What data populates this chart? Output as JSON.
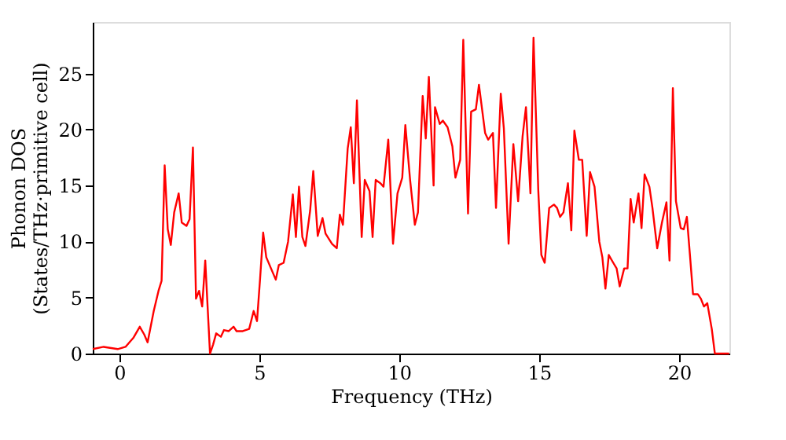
{
  "chart_data": {
    "type": "line",
    "xlabel": "Frequency (THz)",
    "ylabel": "Phonon DOS\n(States/THz·primitive cell)",
    "x": [
      -0.95,
      -0.56,
      -0.06,
      0.22,
      0.5,
      0.73,
      0.89,
      1.01,
      1.23,
      1.4,
      1.51,
      1.62,
      1.73,
      1.84,
      1.96,
      2.12,
      2.23,
      2.4,
      2.51,
      2.63,
      2.74,
      2.85,
      2.96,
      3.07,
      3.24,
      3.35,
      3.46,
      3.63,
      3.74,
      3.91,
      4.08,
      4.19,
      4.41,
      4.64,
      4.8,
      4.92,
      5.03,
      5.14,
      5.25,
      5.42,
      5.59,
      5.7,
      5.87,
      6.03,
      6.2,
      6.31,
      6.42,
      6.54,
      6.65,
      6.82,
      6.93,
      7.09,
      7.26,
      7.37,
      7.6,
      7.77,
      7.88,
      7.99,
      8.16,
      8.27,
      8.38,
      8.49,
      8.66,
      8.77,
      8.94,
      9.05,
      9.16,
      9.33,
      9.44,
      9.61,
      9.78,
      9.94,
      10.11,
      10.22,
      10.39,
      10.56,
      10.67,
      10.84,
      10.95,
      11.06,
      11.23,
      11.28,
      11.45,
      11.56,
      11.73,
      11.9,
      12.01,
      12.18,
      12.29,
      12.46,
      12.57,
      12.74,
      12.85,
      13.07,
      13.18,
      13.35,
      13.46,
      13.63,
      13.74,
      13.91,
      14.08,
      14.25,
      14.41,
      14.53,
      14.69,
      14.8,
      14.97,
      15.08,
      15.2,
      15.36,
      15.53,
      15.64,
      15.75,
      15.87,
      16.03,
      16.15,
      16.26,
      16.42,
      16.54,
      16.7,
      16.82,
      16.98,
      17.15,
      17.26,
      17.37,
      17.49,
      17.65,
      17.77,
      17.88,
      18.04,
      18.16,
      18.27,
      18.38,
      18.55,
      18.66,
      18.77,
      18.94,
      19.05,
      19.22,
      19.39,
      19.55,
      19.66,
      19.78,
      19.89,
      20.06,
      20.17,
      20.28,
      20.39,
      20.5,
      20.67,
      20.78,
      20.89,
      21.01,
      21.17,
      21.28,
      21.79
    ],
    "series": [
      {
        "color": "#ff0000",
        "values": [
          0.4,
          0.6,
          0.4,
          0.6,
          1.4,
          2.4,
          1.7,
          1.0,
          3.8,
          5.6,
          6.5,
          16.8,
          11.1,
          9.7,
          12.6,
          14.3,
          11.7,
          11.4,
          12.0,
          18.4,
          4.9,
          5.6,
          4.2,
          8.3,
          0.0,
          0.8,
          1.8,
          1.5,
          2.1,
          2.0,
          2.4,
          2.0,
          2.0,
          2.2,
          3.8,
          2.9,
          6.7,
          10.8,
          8.6,
          7.6,
          6.6,
          7.9,
          8.1,
          10.0,
          14.2,
          10.4,
          14.9,
          10.4,
          9.6,
          12.8,
          16.3,
          10.5,
          12.1,
          10.7,
          9.8,
          9.4,
          12.4,
          11.5,
          18.3,
          20.2,
          15.2,
          22.6,
          10.4,
          15.5,
          14.5,
          10.4,
          15.5,
          15.2,
          14.9,
          19.1,
          9.8,
          14.3,
          15.7,
          20.4,
          15.5,
          11.5,
          12.6,
          23.0,
          19.2,
          24.7,
          15.0,
          22.0,
          20.5,
          20.8,
          20.2,
          18.5,
          15.7,
          17.3,
          28.0,
          12.5,
          21.6,
          21.8,
          24.0,
          19.7,
          19.1,
          19.7,
          13.0,
          23.2,
          20.1,
          9.8,
          18.7,
          13.6,
          19.4,
          22.0,
          14.3,
          28.2,
          14.6,
          8.8,
          8.1,
          13.0,
          13.3,
          13.0,
          12.2,
          12.6,
          15.2,
          11.0,
          19.9,
          17.3,
          17.3,
          10.5,
          16.2,
          14.9,
          10.0,
          8.6,
          5.8,
          8.8,
          8.1,
          7.6,
          6.0,
          7.6,
          7.6,
          13.8,
          11.7,
          14.3,
          11.2,
          16.0,
          14.9,
          13.0,
          9.4,
          11.7,
          13.5,
          8.3,
          23.7,
          13.6,
          11.2,
          11.1,
          12.2,
          8.8,
          5.3,
          5.3,
          4.9,
          4.2,
          4.5,
          2.2,
          0.0,
          0.0
        ]
      }
    ],
    "xlim": [
      -0.95,
      21.8
    ],
    "ylim": [
      0,
      29.6
    ],
    "xticks": [
      0,
      5,
      10,
      15,
      20
    ],
    "yticks": [
      0,
      5,
      10,
      15,
      20,
      25
    ],
    "grid": false,
    "legend": false
  }
}
